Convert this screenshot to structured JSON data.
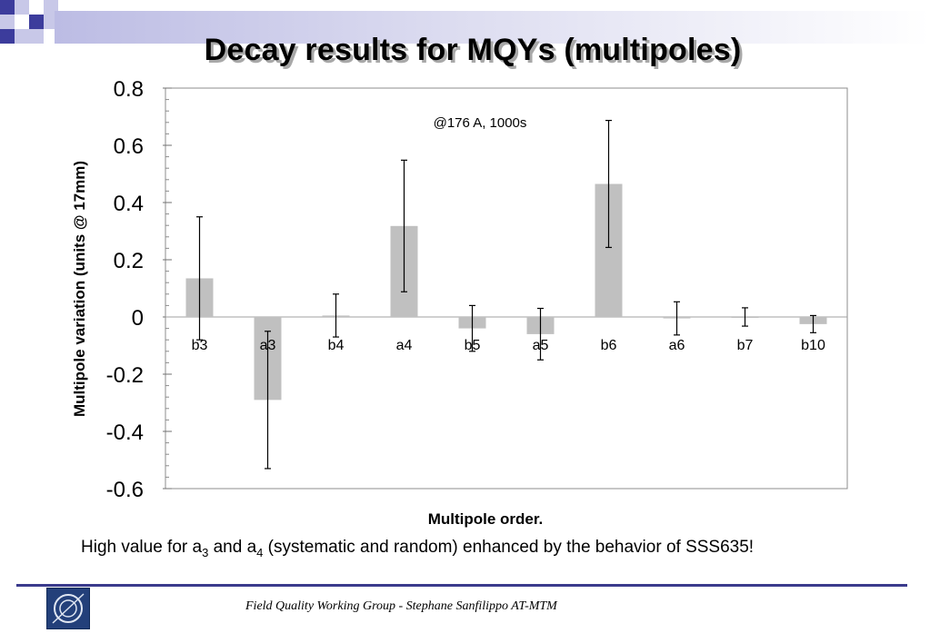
{
  "slide": {
    "title": "Decay results for MQYs (multipoles)",
    "note": {
      "part1": "High value for a",
      "sub1": "3",
      "part2": " and a",
      "sub2": "4",
      "part3": " (systematic and random) enhanced by the behavior of SSS635!"
    },
    "footer": "Field Quality Working Group -  Stephane Sanfilippo   AT-MTM",
    "logo_icon": "cern-logo-icon",
    "colors": {
      "bar": "#c0c0c0",
      "accent": "#3a3a8c",
      "logo": "#23407a"
    }
  },
  "chart_data": {
    "type": "bar",
    "title": "Decay results for MQYs (multipoles)",
    "xlabel": "Multipole order.",
    "ylabel": "Multipole variation (units @ 17mm)",
    "annotation": "@176 A, 1000s",
    "categories": [
      "b3",
      "a3",
      "b4",
      "a4",
      "b5",
      "a5",
      "b6",
      "a6",
      "b7",
      "b10"
    ],
    "values": [
      0.135,
      -0.29,
      0.005,
      0.318,
      -0.04,
      -0.06,
      0.465,
      -0.005,
      0.0,
      -0.025
    ],
    "error": [
      0.215,
      0.24,
      0.075,
      0.23,
      0.08,
      0.09,
      0.222,
      0.058,
      0.032,
      0.03
    ],
    "ylim": [
      -0.6,
      0.8
    ],
    "yticks": [
      0.8,
      0.6,
      0.4,
      0.2,
      0,
      -0.2,
      -0.4,
      -0.6
    ],
    "ytick_labels": [
      "0.8",
      "0.6",
      "0.4",
      "0.2",
      "0",
      "-0.2",
      "-0.4",
      "-0.6"
    ],
    "grid": false,
    "bar_color": "#c0c0c0"
  }
}
